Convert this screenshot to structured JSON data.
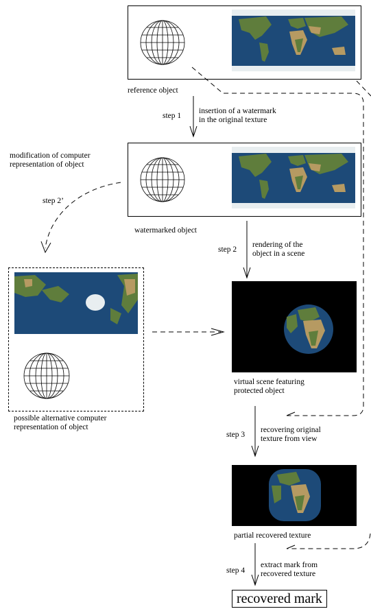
{
  "labels": {
    "reference_object": "reference object",
    "step1": "step 1",
    "step1_desc_line1": "insertion of a watermark",
    "step1_desc_line2": "in the original texture",
    "modification_line1": "modification of computer",
    "modification_line2": "representation of object",
    "step2_prime": "step 2’",
    "watermarked_object": "watermarked object",
    "step2": "step 2",
    "step2_desc_line1": "rendering of the",
    "step2_desc_line2": "object in a scene",
    "virtual_line1": "virtual scene featuring",
    "virtual_line2": "protected object",
    "alternative_line1": "possible alternative computer",
    "alternative_line2": "representation of object",
    "step3": "step 3",
    "step3_desc_line1": "recovering original",
    "step3_desc_line2": "texture from view",
    "partial_recovered": "partial recovered texture",
    "step4": "step 4",
    "step4_desc_line1": "extract mark from",
    "step4_desc_line2": "recovered texture",
    "recovered_mark": "recovered mark"
  },
  "colors": {
    "ocean": "#1d4a78",
    "land": "#5f7d3c",
    "desert": "#b69a62",
    "ice": "#e8eef0",
    "scene_background": "#000000"
  }
}
